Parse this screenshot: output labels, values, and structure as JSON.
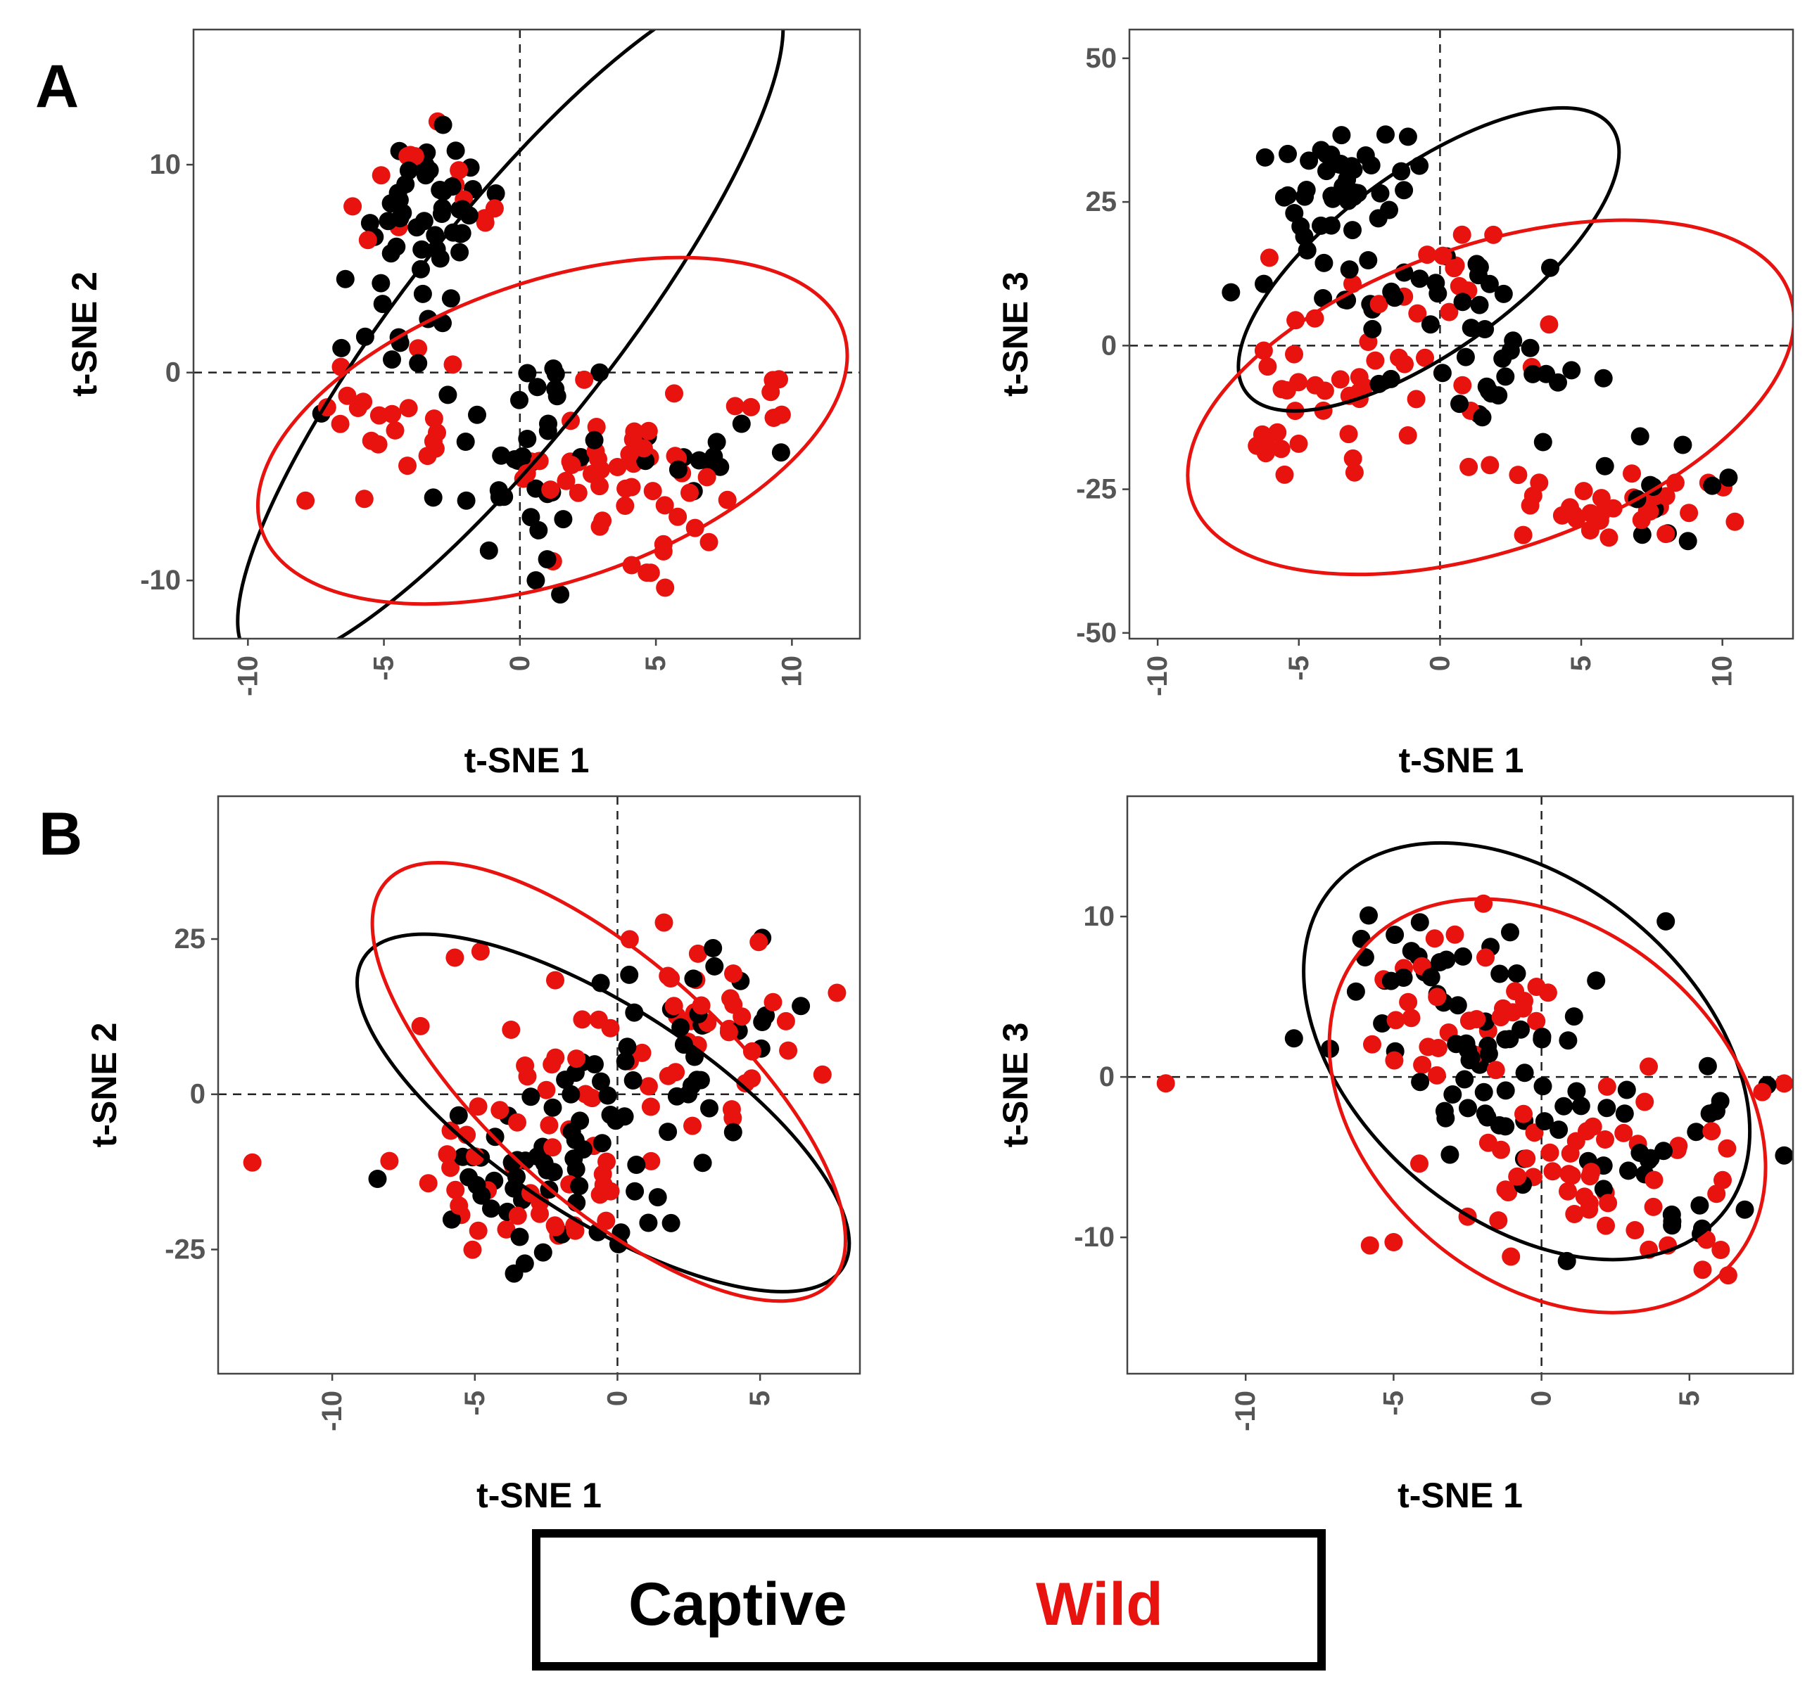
{
  "colors": {
    "captive": "#000000",
    "wild": "#e8120f"
  },
  "legend": {
    "captive_label": "Captive",
    "wild_label": "Wild"
  },
  "panels": {
    "A": "A",
    "B": "B"
  },
  "chart_data": [
    {
      "id": "A1",
      "type": "scatter",
      "xlabel": "t-SNE 1",
      "ylabel": "t-SNE 2",
      "xlim": [
        -12,
        12.5
      ],
      "ylim": [
        -12.8,
        16.5
      ],
      "xticks": [
        -10,
        -5,
        0,
        5,
        10
      ],
      "yticks": [
        -10,
        0,
        10
      ],
      "ellipses": [
        {
          "series": "Captive",
          "cx": -0.35,
          "cy": 2.3,
          "rx": 15.5,
          "ry": 3.9,
          "angle_deg": -52
        },
        {
          "series": "Wild",
          "cx": 1.2,
          "cy": -2.8,
          "rx": 11.3,
          "ry": 5.5,
          "angle_deg": -19
        }
      ],
      "clusters": [
        {
          "series": "Captive",
          "cx": -3.5,
          "cy": 7.5,
          "sx": 1.4,
          "sy": 1.8,
          "n": 42
        },
        {
          "series": "Captive",
          "cx": -4.5,
          "cy": 3.0,
          "sx": 1.4,
          "sy": 1.8,
          "n": 14
        },
        {
          "series": "Captive",
          "cx": 0.5,
          "cy": -3.5,
          "sx": 1.8,
          "sy": 2.7,
          "n": 36
        },
        {
          "series": "Captive",
          "cx": 7.5,
          "cy": -4.5,
          "sx": 1.2,
          "sy": 1.0,
          "n": 12
        },
        {
          "series": "Wild",
          "cx": -4.5,
          "cy": -2.5,
          "sx": 1.3,
          "sy": 1.8,
          "n": 22
        },
        {
          "series": "Wild",
          "cx": 3.5,
          "cy": -5.0,
          "sx": 2.1,
          "sy": 1.7,
          "n": 50
        },
        {
          "series": "Wild",
          "cx": -3.5,
          "cy": 8.0,
          "sx": 1.2,
          "sy": 1.6,
          "n": 14
        },
        {
          "series": "Wild",
          "cx": 8.8,
          "cy": -1.8,
          "sx": 0.9,
          "sy": 0.7,
          "n": 7
        }
      ]
    },
    {
      "id": "A2",
      "type": "scatter",
      "xlabel": "t-SNE 1",
      "ylabel": "t-SNE 3",
      "xlim": [
        -11,
        12.5
      ],
      "ylim": [
        -51,
        55
      ],
      "xticks": [
        -10,
        -5,
        0,
        5,
        10
      ],
      "yticks": [
        -50,
        -25,
        0,
        25,
        50
      ],
      "ellipses": [
        {
          "series": "Captive",
          "cx": -0.4,
          "cy": 15,
          "rx": 8.0,
          "ry": 3.2,
          "angle_deg": -36
        },
        {
          "series": "Wild",
          "cx": 1.8,
          "cy": -9,
          "rx": 11.2,
          "ry": 5.4,
          "angle_deg": -19
        }
      ],
      "clusters": [
        {
          "series": "Captive",
          "cx": -3.5,
          "cy": 29,
          "sx": 1.2,
          "sy": 4.5,
          "n": 40
        },
        {
          "series": "Captive",
          "cx": -1.0,
          "cy": 11,
          "sx": 2.2,
          "sy": 3.5,
          "n": 25
        },
        {
          "series": "Captive",
          "cx": 2.0,
          "cy": -3,
          "sx": 1.6,
          "sy": 6,
          "n": 28
        },
        {
          "series": "Captive",
          "cx": 7.5,
          "cy": -24,
          "sx": 1.5,
          "sy": 6,
          "n": 12
        },
        {
          "series": "Wild",
          "cx": -5.0,
          "cy": -10,
          "sx": 1.0,
          "sy": 8,
          "n": 22
        },
        {
          "series": "Wild",
          "cx": 6.0,
          "cy": -28,
          "sx": 2.4,
          "sy": 3,
          "n": 32
        },
        {
          "series": "Wild",
          "cx": -1.0,
          "cy": -8,
          "sx": 2.5,
          "sy": 8,
          "n": 22
        },
        {
          "series": "Wild",
          "cx": 0.5,
          "cy": 13,
          "sx": 2.0,
          "sy": 4,
          "n": 12
        }
      ]
    },
    {
      "id": "B1",
      "type": "scatter",
      "xlabel": "t-SNE 1",
      "ylabel": "t-SNE 2",
      "xlim": [
        -14,
        8.5
      ],
      "ylim": [
        -45,
        48
      ],
      "xticks": [
        -10,
        -5,
        0,
        5
      ],
      "yticks": [
        -25,
        0,
        25
      ],
      "ellipses": [
        {
          "series": "Captive",
          "cx": -0.5,
          "cy": -3,
          "rx": 10.0,
          "ry": 3.7,
          "angle_deg": 33
        },
        {
          "series": "Wild",
          "cx": -0.3,
          "cy": 2,
          "rx": 10.5,
          "ry": 4.2,
          "angle_deg": 42
        }
      ],
      "clusters": [
        {
          "series": "Captive",
          "cx": -2.5,
          "cy": -14,
          "sx": 2.2,
          "sy": 7,
          "n": 48
        },
        {
          "series": "Captive",
          "cx": 3.0,
          "cy": 10,
          "sx": 2.0,
          "sy": 8,
          "n": 30
        },
        {
          "series": "Captive",
          "cx": -0.5,
          "cy": 0,
          "sx": 2.0,
          "sy": 6,
          "n": 15
        },
        {
          "series": "Wild",
          "cx": -3.0,
          "cy": -15,
          "sx": 2.3,
          "sy": 7,
          "n": 38
        },
        {
          "series": "Wild",
          "cx": 2.5,
          "cy": 12,
          "sx": 2.2,
          "sy": 9,
          "n": 42
        },
        {
          "series": "Wild",
          "cx": -3.0,
          "cy": 5,
          "sx": 2.0,
          "sy": 5,
          "n": 12
        }
      ],
      "extra_points": [
        {
          "series": "Wild",
          "x": -12.8,
          "y": -11
        },
        {
          "series": "Wild",
          "x": -5.7,
          "y": 22
        },
        {
          "series": "Wild",
          "x": -4.8,
          "y": 23
        }
      ]
    },
    {
      "id": "B2",
      "type": "scatter",
      "xlabel": "t-SNE 1",
      "ylabel": "t-SNE 3",
      "xlim": [
        -14,
        8.5
      ],
      "ylim": [
        -18.5,
        17.5
      ],
      "xticks": [
        -10,
        -5,
        0,
        5
      ],
      "yticks": [
        -10,
        0,
        10
      ],
      "ellipses": [
        {
          "series": "Captive",
          "cx": -0.5,
          "cy": 1.6,
          "rx": 8.6,
          "ry": 5.7,
          "angle_deg": 40
        },
        {
          "series": "Wild",
          "cx": 0.2,
          "cy": -1.8,
          "rx": 8.2,
          "ry": 6.0,
          "angle_deg": 40
        }
      ],
      "clusters": [
        {
          "series": "Captive",
          "cx": -3.0,
          "cy": 4,
          "sx": 2.0,
          "sy": 3.5,
          "n": 50
        },
        {
          "series": "Captive",
          "cx": 1.5,
          "cy": -3,
          "sx": 2.5,
          "sy": 3.5,
          "n": 40
        },
        {
          "series": "Captive",
          "cx": 5.5,
          "cy": -9.5,
          "sx": 0.8,
          "sy": 1.0,
          "n": 6
        },
        {
          "series": "Wild",
          "cx": -3.0,
          "cy": 4,
          "sx": 2.0,
          "sy": 3.5,
          "n": 35
        },
        {
          "series": "Wild",
          "cx": 2.0,
          "cy": -6,
          "sx": 2.2,
          "sy": 3.0,
          "n": 48
        },
        {
          "series": "Wild",
          "cx": 6.0,
          "cy": -11,
          "sx": 0.5,
          "sy": 0.8,
          "n": 4
        }
      ],
      "extra_points": [
        {
          "series": "Wild",
          "x": -12.7,
          "y": -0.4
        },
        {
          "series": "Wild",
          "x": -5.8,
          "y": -10.5
        },
        {
          "series": "Wild",
          "x": -5.0,
          "y": -10.3
        },
        {
          "series": "Captive",
          "x": 4.2,
          "y": 9.7
        }
      ]
    }
  ]
}
